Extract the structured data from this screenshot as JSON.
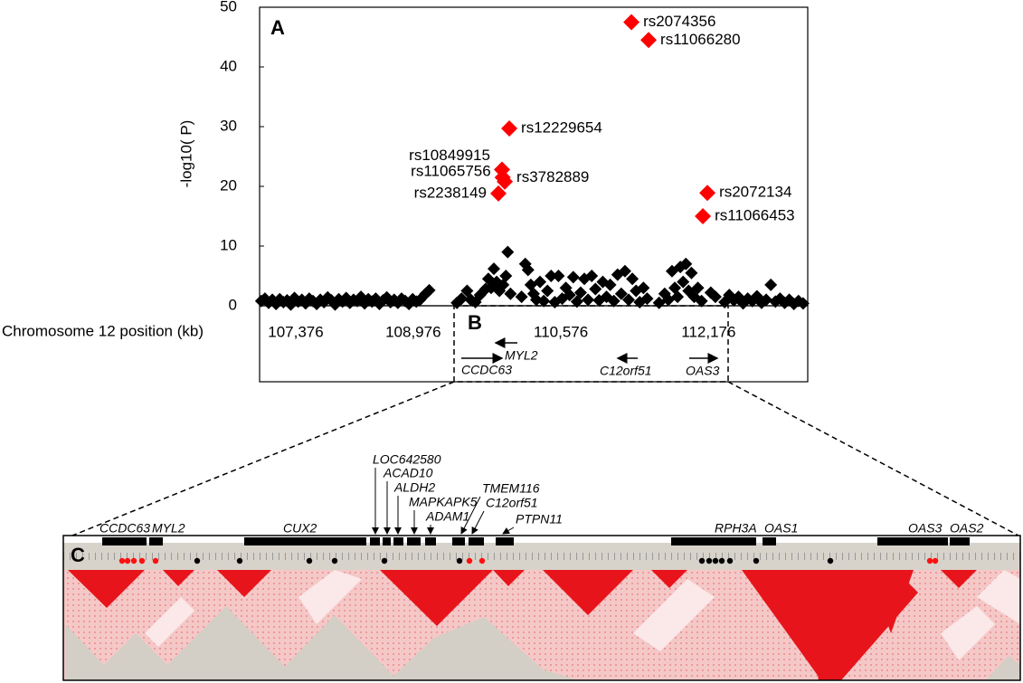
{
  "chart_data": {
    "type": "scatter",
    "panel_label": "A",
    "y_label": "-log10( P)",
    "x_label": "Chromosome 12 position (kb)",
    "xlim": [
      107312,
      113250
    ],
    "xticks": [
      {
        "value": 107376,
        "label": "107,376"
      },
      {
        "value": 108976,
        "label": "108,976"
      },
      {
        "value": 110576,
        "label": "110,576"
      },
      {
        "value": 112176,
        "label": "112,176"
      }
    ],
    "ylim": [
      0,
      50
    ],
    "yticks": [
      0,
      10,
      20,
      30,
      40,
      50
    ],
    "series": [
      {
        "color": "#000000",
        "x": [
          107330,
          107370,
          107410,
          107450,
          107490,
          107530,
          107570,
          107610,
          107650,
          107690,
          107730,
          107770,
          107810,
          107850,
          107890,
          107930,
          107970,
          108010,
          108050,
          108090,
          108130,
          108170,
          108210,
          108250,
          108290,
          108330,
          108370,
          108410,
          108450,
          108490,
          108530,
          108570,
          108610,
          108650,
          108690,
          108730,
          108770,
          108810,
          108850,
          108890,
          108930,
          108970,
          109010,
          109050,
          109110,
          109150,
          109450,
          109500,
          109560,
          109600,
          109650,
          109700,
          109760,
          109790,
          109820,
          109850,
          109880,
          109910,
          109950,
          109980,
          110000,
          110030,
          110150,
          110190,
          110220,
          110250,
          110280,
          110310,
          110350,
          110390,
          110430,
          110470,
          110510,
          110550,
          110590,
          110630,
          110670,
          110710,
          110750,
          110790,
          110830,
          110870,
          110910,
          110950,
          110990,
          111030,
          111070,
          111110,
          111150,
          111190,
          111230,
          111270,
          111310,
          111350,
          111390,
          111430,
          111470,
          111510,
          111640,
          111700,
          111740,
          111780,
          111810,
          111840,
          111870,
          111900,
          111930,
          111960,
          111990,
          112020,
          112060,
          112100,
          112200,
          112250,
          112350,
          112400,
          112450,
          112500,
          112550,
          112600,
          112650,
          112700,
          112750,
          112800,
          112850,
          112900,
          112950,
          113000,
          113050,
          113100,
          113150,
          113200
        ],
        "values": [
          0.8,
          1.2,
          0.5,
          1.0,
          0.3,
          1.1,
          0.6,
          0.9,
          0.2,
          1.3,
          0.7,
          1.0,
          0.4,
          1.2,
          0.8,
          0.3,
          1.0,
          0.6,
          1.4,
          0.9,
          0.2,
          1.1,
          0.7,
          1.3,
          0.5,
          1.0,
          0.8,
          1.5,
          0.4,
          1.1,
          0.7,
          1.2,
          0.3,
          0.9,
          1.4,
          0.6,
          1.0,
          0.5,
          1.2,
          0.8,
          0.3,
          1.1,
          0.7,
          1.0,
          2.0,
          2.6,
          0.5,
          1.2,
          2.5,
          1.0,
          0.6,
          1.8,
          2.8,
          4.5,
          3.0,
          6.2,
          4.0,
          2.5,
          3.5,
          5.0,
          9.0,
          2.0,
          1.5,
          7.0,
          6.0,
          3.5,
          2.0,
          1.0,
          4.0,
          0.8,
          2.5,
          5.0,
          0.6,
          5.0,
          1.2,
          3.0,
          1.8,
          4.8,
          0.7,
          2.2,
          4.5,
          1.0,
          5.0,
          2.8,
          0.9,
          4.0,
          1.5,
          3.5,
          0.8,
          5.2,
          2.0,
          5.8,
          1.0,
          4.5,
          2.5,
          0.6,
          3.0,
          1.2,
          0.5,
          2.0,
          1.0,
          5.8,
          3.0,
          1.5,
          6.5,
          4.0,
          7.0,
          2.5,
          5.5,
          1.5,
          3.0,
          0.8,
          2.2,
          1.5,
          0.6,
          1.8,
          0.9,
          1.5,
          0.4,
          1.2,
          0.8,
          1.6,
          0.5,
          1.0,
          3.5,
          0.7,
          1.2,
          0.5,
          1.0,
          0.3,
          0.8,
          0.4
        ]
      },
      {
        "color": "#ff0000",
        "x": [
          111340,
          111526,
          110017,
          109938,
          109945,
          109968,
          109899,
          112163,
          112114
        ],
        "values": [
          47.5,
          44.5,
          29.7,
          22.8,
          21.5,
          20.8,
          18.8,
          18.9,
          15.0
        ],
        "point_labels": [
          "rs2074356",
          "rs11066280",
          "rs12229654",
          "rs10849915",
          "rs11065756",
          "rs3782889",
          "rs2238149",
          "rs2072134",
          "rs11066453"
        ]
      }
    ]
  },
  "panel_b": {
    "label": "B",
    "genes": [
      "MYL2",
      "CCDC63",
      "C12orf51",
      "OAS3"
    ]
  },
  "panel_c": {
    "label": "C",
    "genes": [
      "CCDC63",
      "MYL2",
      "CUX2",
      "RPH3A",
      "OAS1",
      "OAS3",
      "OAS2"
    ],
    "arrow_genes": [
      "LOC642580",
      "ACAD10",
      "ALDH2",
      "MAPKAPK5",
      "ADAM1",
      "TMEM116",
      "C12orf51",
      "PTPN11"
    ]
  }
}
